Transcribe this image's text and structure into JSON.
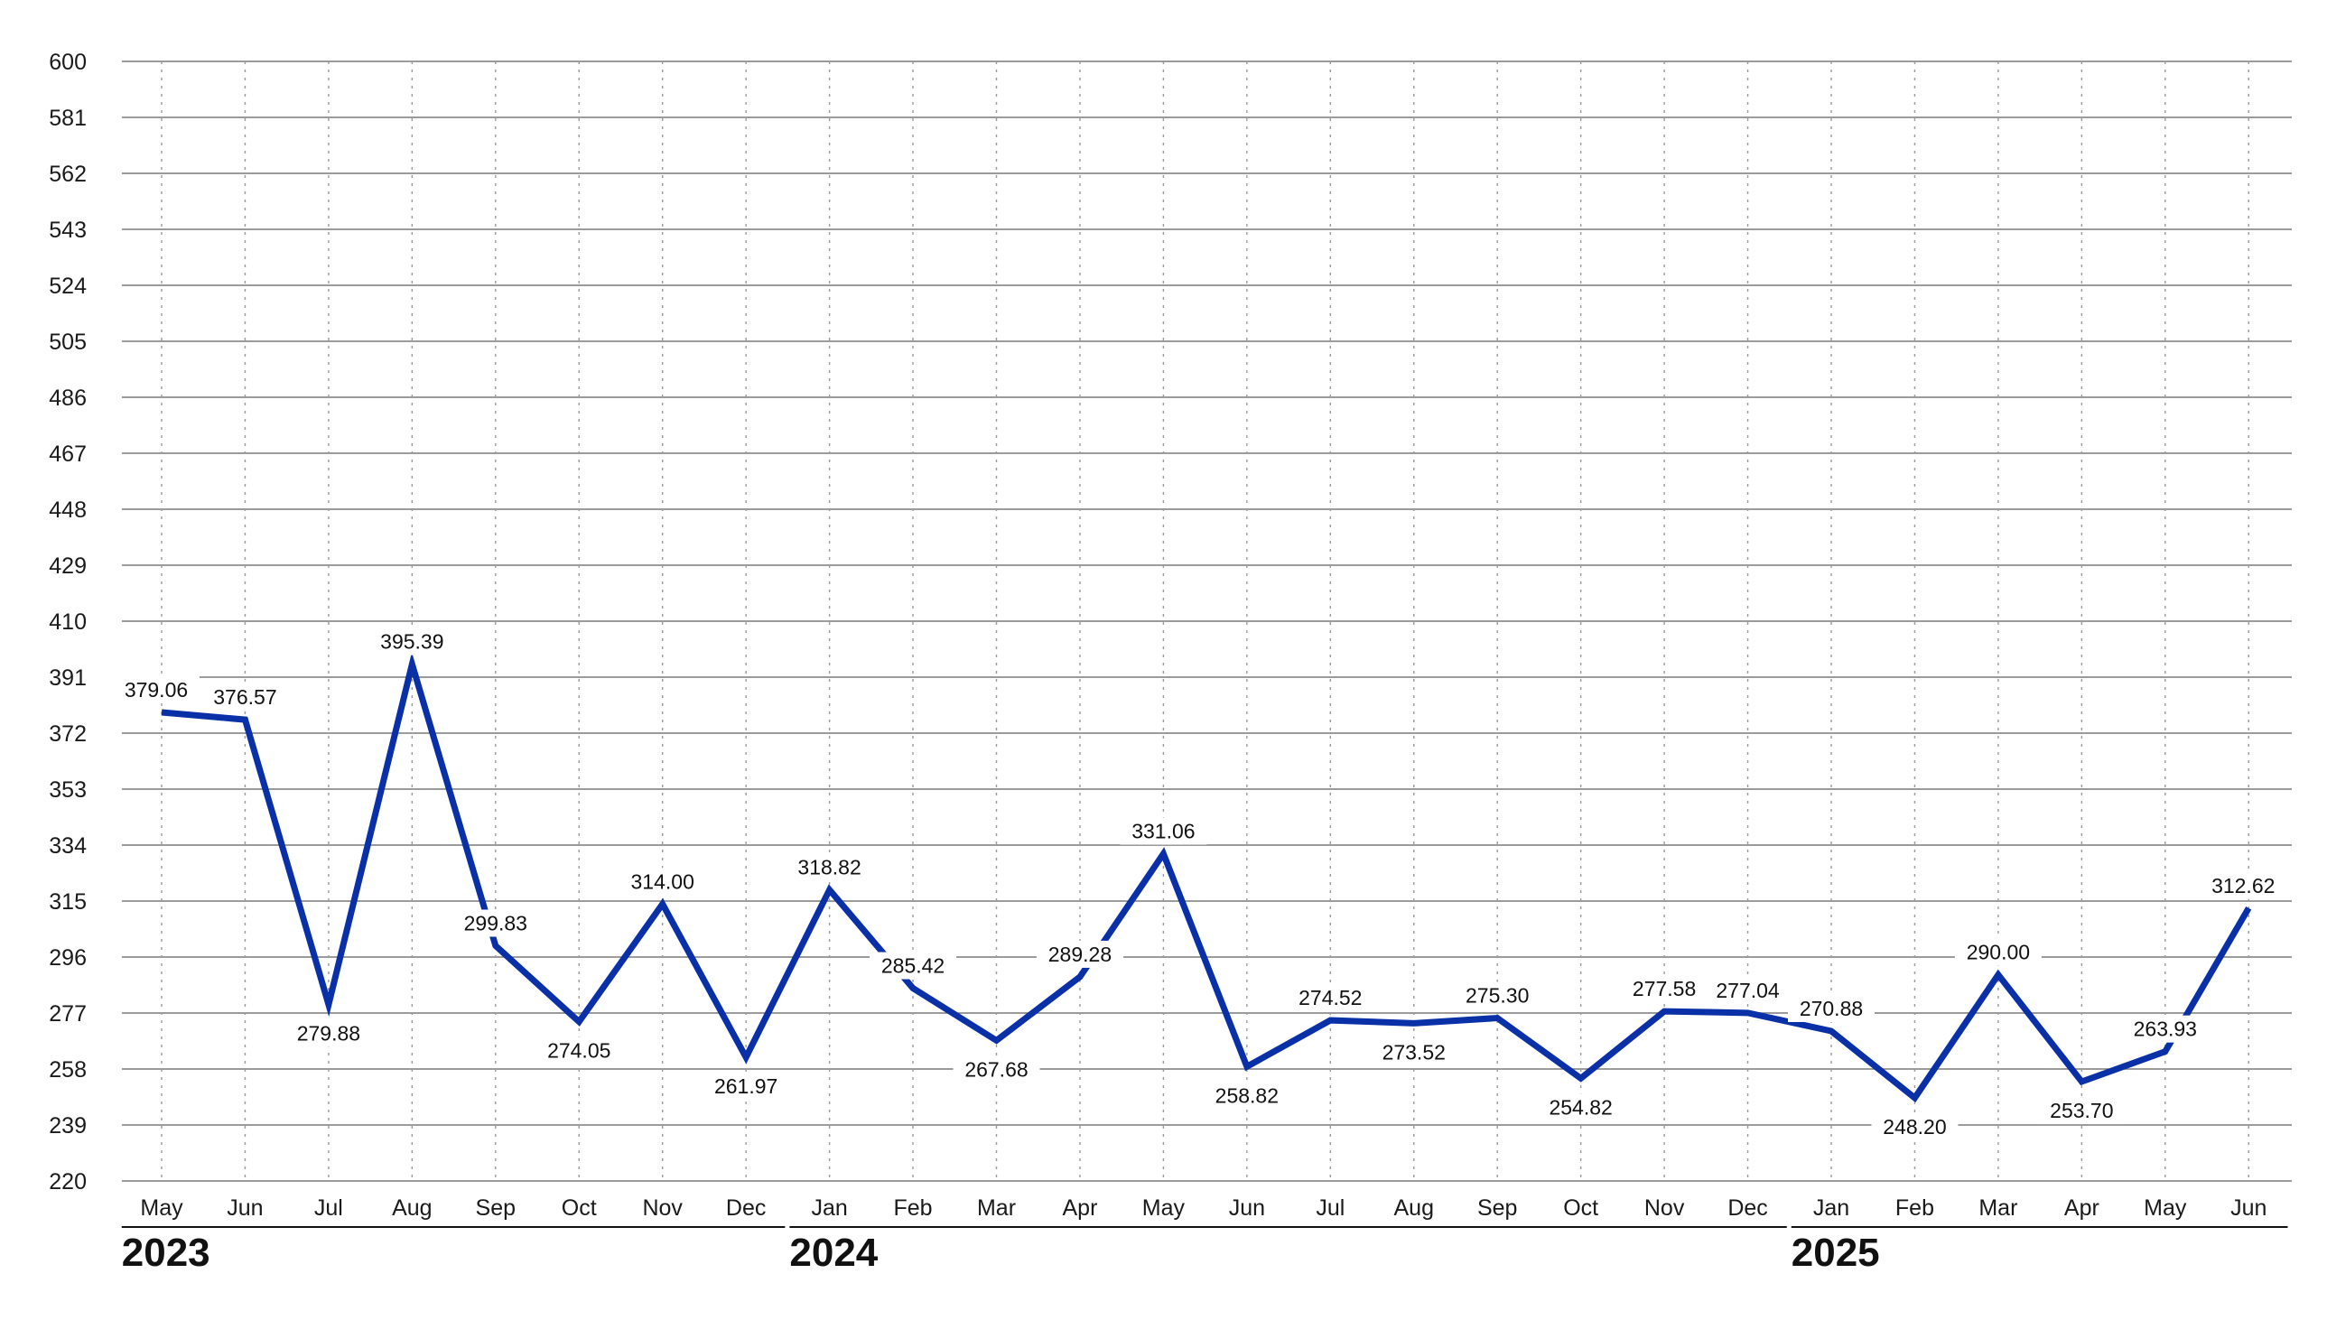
{
  "chart_data": {
    "type": "line",
    "ylim": [
      220,
      600
    ],
    "yticks": [
      220,
      239,
      258,
      277,
      296,
      315,
      334,
      353,
      372,
      391,
      410,
      429,
      448,
      467,
      486,
      505,
      524,
      543,
      562,
      581,
      600
    ],
    "x": [
      "May",
      "Jun",
      "Jul",
      "Aug",
      "Sep",
      "Oct",
      "Nov",
      "Dec",
      "Jan",
      "Feb",
      "Mar",
      "Apr",
      "May",
      "Jun",
      "Jul",
      "Aug",
      "Sep",
      "Oct",
      "Nov",
      "Dec",
      "Jan",
      "Feb",
      "Mar",
      "Apr",
      "May",
      "Jun"
    ],
    "years": [
      {
        "label": "2023",
        "start": 0,
        "end": 7
      },
      {
        "label": "2024",
        "start": 8,
        "end": 19
      },
      {
        "label": "2025",
        "start": 20,
        "end": 25
      }
    ],
    "series": [
      {
        "values": [
          379.06,
          376.57,
          279.88,
          395.39,
          299.83,
          274.05,
          314.0,
          261.97,
          318.82,
          285.42,
          267.68,
          289.28,
          331.06,
          258.82,
          274.52,
          273.52,
          275.3,
          254.82,
          277.58,
          277.04,
          270.88,
          248.2,
          290.0,
          253.7,
          263.93,
          312.62
        ],
        "labels": [
          "379.06",
          "376.57",
          "279.88",
          "395.39",
          "299.83",
          "274.05",
          "314.00",
          "261.97",
          "318.82",
          "285.42",
          "267.68",
          "289.28",
          "331.06",
          "258.82",
          "274.52",
          "273.52",
          "275.30",
          "254.82",
          "277.58",
          "277.04",
          "270.88",
          "248.20",
          "290.00",
          "253.70",
          "263.93",
          "312.62"
        ],
        "color": "#0a30a8"
      }
    ],
    "grid": {
      "horizontal": true,
      "vertical": "dotted"
    },
    "colors": {
      "line": "#0a30a8",
      "grid": "#7a7a7a",
      "text": "#1a1a1a"
    }
  }
}
